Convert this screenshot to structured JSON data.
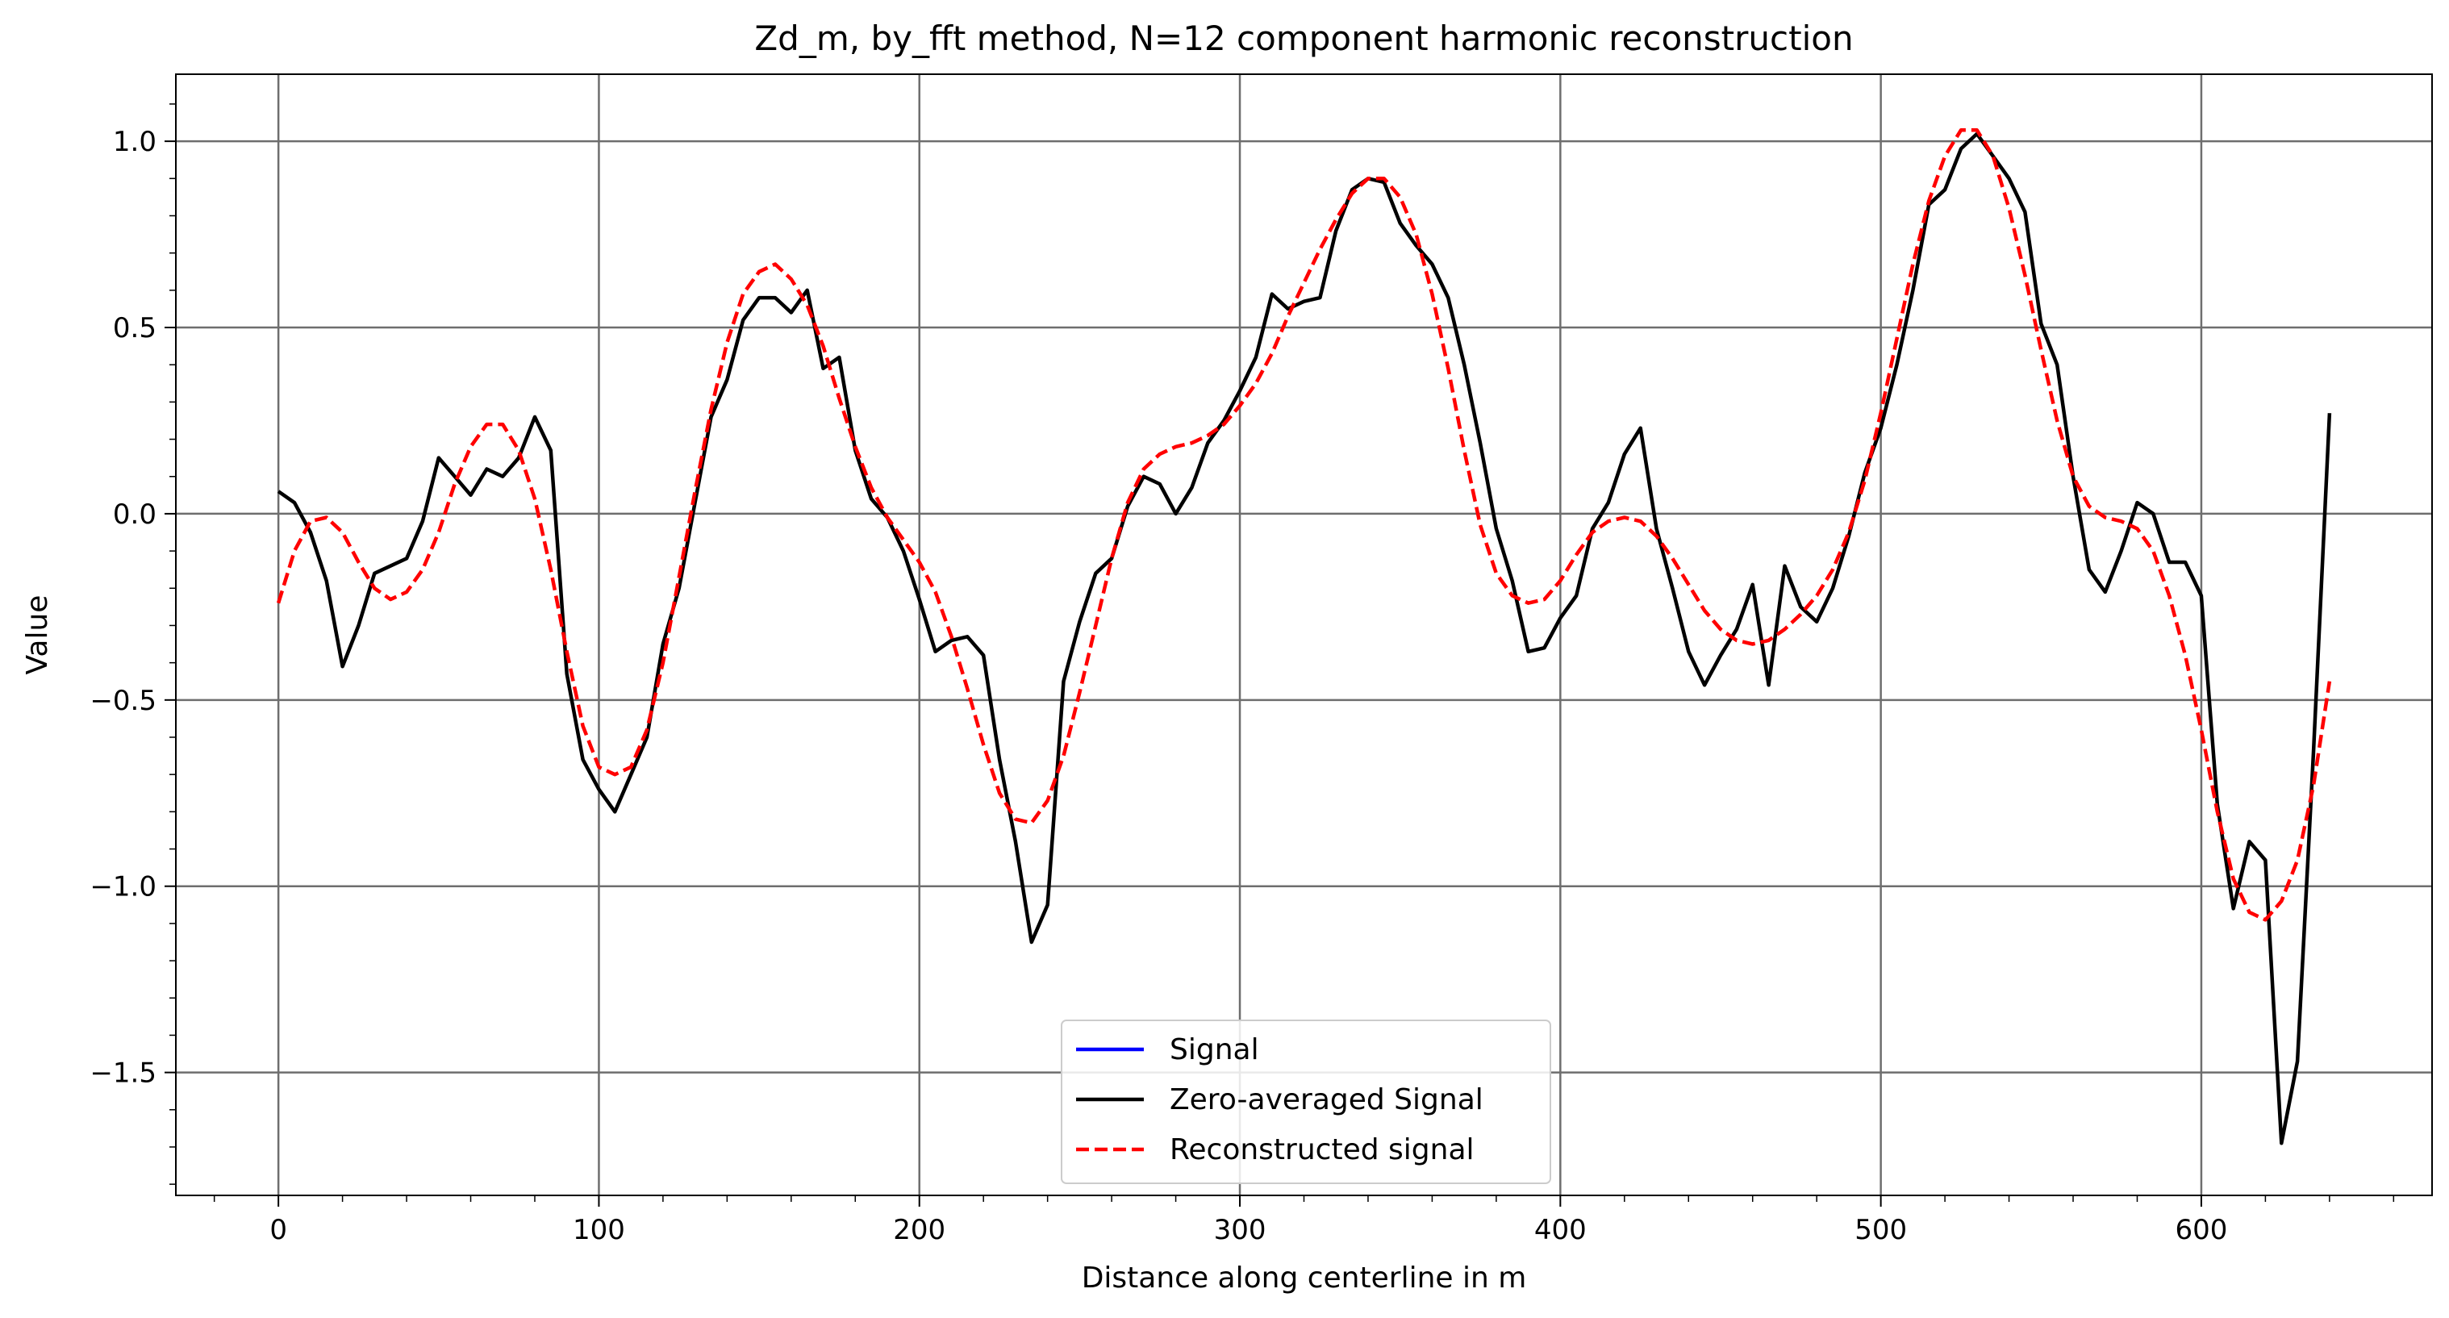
{
  "chart_data": {
    "type": "line",
    "title": "Zd_m, by_fft method, N=12 component harmonic reconstruction",
    "xlabel": "Distance along centerline in m",
    "ylabel": "Value",
    "xlim": [
      -32,
      672
    ],
    "ylim": [
      -1.83,
      1.18
    ],
    "x_ticks": [
      0,
      100,
      200,
      300,
      400,
      500,
      600
    ],
    "x_tick_labels": [
      "0",
      "100",
      "200",
      "300",
      "400",
      "500",
      "600"
    ],
    "y_ticks": [
      -1.5,
      -1.0,
      -0.5,
      0.0,
      0.5,
      1.0
    ],
    "y_tick_labels": [
      "−1.5",
      "−1.0",
      "−0.5",
      "0.0",
      "0.5",
      "1.0"
    ],
    "grid": true,
    "minor_ticks": true,
    "legend_position": "lower center",
    "series": [
      {
        "name": "Signal",
        "color": "#0000ff",
        "style": "solid",
        "points": []
      },
      {
        "name": "Zero-averaged Signal",
        "color": "#000000",
        "style": "solid",
        "points": [
          [
            0,
            0.06
          ],
          [
            5,
            0.03
          ],
          [
            10,
            -0.05
          ],
          [
            15,
            -0.18
          ],
          [
            20,
            -0.41
          ],
          [
            25,
            -0.3
          ],
          [
            30,
            -0.16
          ],
          [
            35,
            -0.14
          ],
          [
            40,
            -0.12
          ],
          [
            45,
            -0.02
          ],
          [
            50,
            0.15
          ],
          [
            55,
            0.1
          ],
          [
            60,
            0.05
          ],
          [
            65,
            0.12
          ],
          [
            70,
            0.1
          ],
          [
            75,
            0.15
          ],
          [
            80,
            0.26
          ],
          [
            85,
            0.17
          ],
          [
            90,
            -0.43
          ],
          [
            95,
            -0.66
          ],
          [
            100,
            -0.74
          ],
          [
            105,
            -0.8
          ],
          [
            110,
            -0.7
          ],
          [
            115,
            -0.6
          ],
          [
            120,
            -0.35
          ],
          [
            125,
            -0.2
          ],
          [
            130,
            0.03
          ],
          [
            135,
            0.26
          ],
          [
            140,
            0.36
          ],
          [
            145,
            0.52
          ],
          [
            150,
            0.58
          ],
          [
            155,
            0.58
          ],
          [
            160,
            0.54
          ],
          [
            165,
            0.6
          ],
          [
            170,
            0.39
          ],
          [
            175,
            0.42
          ],
          [
            180,
            0.17
          ],
          [
            185,
            0.04
          ],
          [
            190,
            -0.01
          ],
          [
            195,
            -0.1
          ],
          [
            200,
            -0.23
          ],
          [
            205,
            -0.37
          ],
          [
            210,
            -0.34
          ],
          [
            215,
            -0.33
          ],
          [
            220,
            -0.38
          ],
          [
            225,
            -0.66
          ],
          [
            230,
            -0.88
          ],
          [
            235,
            -1.15
          ],
          [
            240,
            -1.05
          ],
          [
            245,
            -0.45
          ],
          [
            250,
            -0.29
          ],
          [
            255,
            -0.16
          ],
          [
            260,
            -0.12
          ],
          [
            265,
            0.02
          ],
          [
            270,
            0.1
          ],
          [
            275,
            0.08
          ],
          [
            280,
            0.0
          ],
          [
            285,
            0.07
          ],
          [
            290,
            0.19
          ],
          [
            295,
            0.25
          ],
          [
            300,
            0.33
          ],
          [
            305,
            0.42
          ],
          [
            310,
            0.59
          ],
          [
            315,
            0.55
          ],
          [
            320,
            0.57
          ],
          [
            325,
            0.58
          ],
          [
            330,
            0.76
          ],
          [
            335,
            0.87
          ],
          [
            340,
            0.9
          ],
          [
            345,
            0.89
          ],
          [
            350,
            0.78
          ],
          [
            355,
            0.72
          ],
          [
            360,
            0.67
          ],
          [
            365,
            0.58
          ],
          [
            370,
            0.4
          ],
          [
            375,
            0.19
          ],
          [
            380,
            -0.04
          ],
          [
            385,
            -0.18
          ],
          [
            390,
            -0.37
          ],
          [
            395,
            -0.36
          ],
          [
            400,
            -0.28
          ],
          [
            405,
            -0.22
          ],
          [
            410,
            -0.04
          ],
          [
            415,
            0.03
          ],
          [
            420,
            0.16
          ],
          [
            425,
            0.23
          ],
          [
            430,
            -0.04
          ],
          [
            435,
            -0.2
          ],
          [
            440,
            -0.37
          ],
          [
            445,
            -0.46
          ],
          [
            450,
            -0.38
          ],
          [
            455,
            -0.31
          ],
          [
            460,
            -0.19
          ],
          [
            465,
            -0.46
          ],
          [
            470,
            -0.14
          ],
          [
            475,
            -0.25
          ],
          [
            480,
            -0.29
          ],
          [
            485,
            -0.2
          ],
          [
            490,
            -0.06
          ],
          [
            495,
            0.11
          ],
          [
            500,
            0.23
          ],
          [
            505,
            0.4
          ],
          [
            510,
            0.6
          ],
          [
            515,
            0.83
          ],
          [
            520,
            0.87
          ],
          [
            525,
            0.98
          ],
          [
            530,
            1.02
          ],
          [
            535,
            0.96
          ],
          [
            540,
            0.9
          ],
          [
            545,
            0.81
          ],
          [
            550,
            0.51
          ],
          [
            555,
            0.4
          ],
          [
            560,
            0.1
          ],
          [
            565,
            -0.15
          ],
          [
            570,
            -0.21
          ],
          [
            575,
            -0.1
          ],
          [
            580,
            0.03
          ],
          [
            585,
            0.0
          ],
          [
            590,
            -0.13
          ],
          [
            595,
            -0.13
          ],
          [
            600,
            -0.22
          ],
          [
            605,
            -0.78
          ],
          [
            610,
            -1.06
          ],
          [
            615,
            -0.88
          ],
          [
            620,
            -0.93
          ],
          [
            625,
            -1.69
          ],
          [
            630,
            -1.47
          ],
          [
            635,
            -0.64
          ],
          [
            640,
            0.27
          ]
        ]
      },
      {
        "name": "Reconstructed signal",
        "color": "#ff0000",
        "style": "dashed",
        "points": [
          [
            0,
            -0.24
          ],
          [
            5,
            -0.1
          ],
          [
            10,
            -0.02
          ],
          [
            15,
            -0.01
          ],
          [
            20,
            -0.05
          ],
          [
            25,
            -0.13
          ],
          [
            30,
            -0.2
          ],
          [
            35,
            -0.23
          ],
          [
            40,
            -0.21
          ],
          [
            45,
            -0.15
          ],
          [
            50,
            -0.05
          ],
          [
            55,
            0.08
          ],
          [
            60,
            0.18
          ],
          [
            65,
            0.24
          ],
          [
            70,
            0.24
          ],
          [
            75,
            0.17
          ],
          [
            80,
            0.04
          ],
          [
            85,
            -0.15
          ],
          [
            90,
            -0.37
          ],
          [
            95,
            -0.57
          ],
          [
            100,
            -0.68
          ],
          [
            105,
            -0.7
          ],
          [
            110,
            -0.68
          ],
          [
            115,
            -0.58
          ],
          [
            120,
            -0.4
          ],
          [
            125,
            -0.17
          ],
          [
            130,
            0.06
          ],
          [
            135,
            0.28
          ],
          [
            140,
            0.46
          ],
          [
            145,
            0.59
          ],
          [
            150,
            0.65
          ],
          [
            155,
            0.67
          ],
          [
            160,
            0.63
          ],
          [
            165,
            0.56
          ],
          [
            170,
            0.45
          ],
          [
            175,
            0.31
          ],
          [
            180,
            0.18
          ],
          [
            185,
            0.07
          ],
          [
            190,
            -0.01
          ],
          [
            195,
            -0.07
          ],
          [
            200,
            -0.13
          ],
          [
            205,
            -0.21
          ],
          [
            210,
            -0.33
          ],
          [
            215,
            -0.47
          ],
          [
            220,
            -0.62
          ],
          [
            225,
            -0.75
          ],
          [
            230,
            -0.82
          ],
          [
            235,
            -0.83
          ],
          [
            240,
            -0.77
          ],
          [
            245,
            -0.65
          ],
          [
            250,
            -0.48
          ],
          [
            255,
            -0.3
          ],
          [
            260,
            -0.12
          ],
          [
            265,
            0.03
          ],
          [
            270,
            0.12
          ],
          [
            275,
            0.16
          ],
          [
            280,
            0.18
          ],
          [
            285,
            0.19
          ],
          [
            290,
            0.21
          ],
          [
            295,
            0.24
          ],
          [
            300,
            0.29
          ],
          [
            305,
            0.35
          ],
          [
            310,
            0.43
          ],
          [
            315,
            0.53
          ],
          [
            320,
            0.62
          ],
          [
            325,
            0.71
          ],
          [
            330,
            0.79
          ],
          [
            335,
            0.86
          ],
          [
            340,
            0.9
          ],
          [
            345,
            0.9
          ],
          [
            350,
            0.85
          ],
          [
            355,
            0.75
          ],
          [
            360,
            0.59
          ],
          [
            365,
            0.39
          ],
          [
            370,
            0.17
          ],
          [
            375,
            -0.03
          ],
          [
            380,
            -0.16
          ],
          [
            385,
            -0.22
          ],
          [
            390,
            -0.24
          ],
          [
            395,
            -0.23
          ],
          [
            400,
            -0.18
          ],
          [
            405,
            -0.11
          ],
          [
            410,
            -0.05
          ],
          [
            415,
            -0.02
          ],
          [
            420,
            -0.01
          ],
          [
            425,
            -0.02
          ],
          [
            430,
            -0.06
          ],
          [
            435,
            -0.12
          ],
          [
            440,
            -0.19
          ],
          [
            445,
            -0.26
          ],
          [
            450,
            -0.31
          ],
          [
            455,
            -0.34
          ],
          [
            460,
            -0.35
          ],
          [
            465,
            -0.34
          ],
          [
            470,
            -0.31
          ],
          [
            475,
            -0.27
          ],
          [
            480,
            -0.22
          ],
          [
            485,
            -0.15
          ],
          [
            490,
            -0.05
          ],
          [
            495,
            0.09
          ],
          [
            500,
            0.27
          ],
          [
            505,
            0.47
          ],
          [
            510,
            0.67
          ],
          [
            515,
            0.84
          ],
          [
            520,
            0.96
          ],
          [
            525,
            1.03
          ],
          [
            530,
            1.03
          ],
          [
            535,
            0.96
          ],
          [
            540,
            0.82
          ],
          [
            545,
            0.64
          ],
          [
            550,
            0.44
          ],
          [
            555,
            0.25
          ],
          [
            560,
            0.1
          ],
          [
            565,
            0.02
          ],
          [
            570,
            -0.01
          ],
          [
            575,
            -0.02
          ],
          [
            580,
            -0.04
          ],
          [
            585,
            -0.1
          ],
          [
            590,
            -0.22
          ],
          [
            595,
            -0.38
          ],
          [
            600,
            -0.58
          ],
          [
            605,
            -0.8
          ],
          [
            610,
            -0.98
          ],
          [
            615,
            -1.07
          ],
          [
            620,
            -1.09
          ],
          [
            625,
            -1.04
          ],
          [
            630,
            -0.93
          ],
          [
            635,
            -0.73
          ],
          [
            640,
            -0.45
          ]
        ]
      }
    ]
  }
}
